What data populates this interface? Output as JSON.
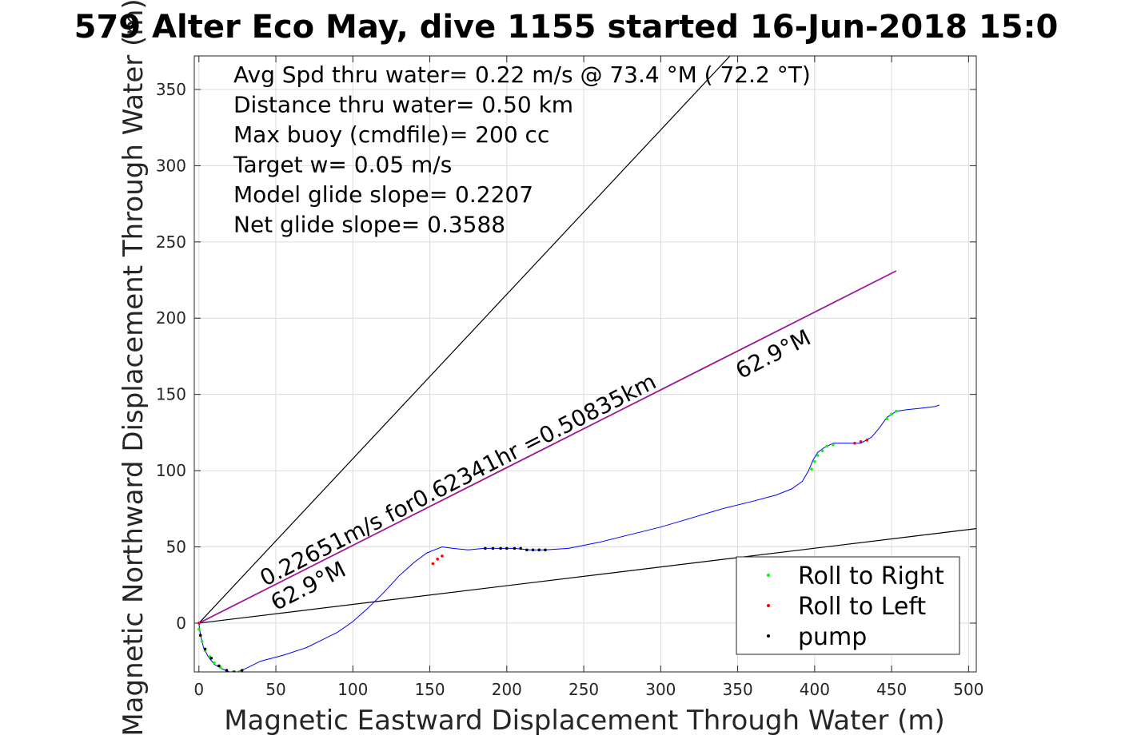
{
  "chart_data": {
    "type": "line",
    "title": "579 Alter Eco May, dive 1155 started 16-Jun-2018 15:0",
    "xlabel": "Magnetic Eastward Displacement Through Water (m)",
    "ylabel": "Magnetic Northward Displacement Through Water (m)",
    "xlim": [
      -3,
      505
    ],
    "ylim": [
      -32,
      372
    ],
    "xticks": [
      0,
      50,
      100,
      150,
      200,
      250,
      300,
      350,
      400,
      450,
      500
    ],
    "yticks": [
      0,
      50,
      100,
      150,
      200,
      250,
      300,
      350
    ],
    "grid": true,
    "legend_position": "bottom-right",
    "colors": {
      "track": "#0000ff",
      "roll_right": "#00ff00",
      "roll_left": "#ff0000",
      "pump": "#000000",
      "reference_lines": "#000000",
      "model_line": "#ff00ff"
    },
    "legend": [
      {
        "label": "Roll to Right",
        "color": "#00ff00"
      },
      {
        "label": "Roll to Left",
        "color": "#ff0000"
      },
      {
        "label": "pump",
        "color": "#000000"
      }
    ],
    "info_lines": [
      "Avg Spd thru water=  0.22 m/s @  73.4 °M ( 72.2 °T)",
      "Distance thru water=  0.50 km",
      "Max buoy (cmdfile)= 200 cc",
      "Target w= 0.05 m/s",
      "Model glide slope= 0.2207",
      "Net glide slope= 0.3588"
    ],
    "reference_lines": [
      {
        "x": [
          0,
          345
        ],
        "y": [
          0,
          372
        ]
      },
      {
        "x": [
          0,
          505
        ],
        "y": [
          0,
          62
        ]
      }
    ],
    "model_line": {
      "x": [
        0,
        453
      ],
      "y": [
        0,
        231
      ]
    },
    "line_labels": [
      {
        "text": "0.22651m/s for0.62341hr =0.50835km",
        "x": 43,
        "y": 24,
        "angle_deg": 27
      },
      {
        "text": "62.9°M",
        "x": 50,
        "y": 8,
        "angle_deg": 27
      },
      {
        "text": "62.9°M",
        "x": 352,
        "y": 160,
        "angle_deg": 27
      }
    ],
    "series": [
      {
        "name": "track",
        "x": [
          0,
          1,
          3,
          6,
          10,
          15,
          20,
          25,
          30,
          40,
          55,
          70,
          80,
          90,
          100,
          110,
          120,
          130,
          140,
          148,
          153,
          158,
          165,
          175,
          185,
          195,
          205,
          215,
          225,
          240,
          260,
          280,
          300,
          320,
          340,
          360,
          375,
          385,
          392,
          396,
          399,
          402,
          406,
          412,
          420,
          430,
          437,
          442,
          447,
          453,
          460,
          470,
          478,
          481
        ],
        "y": [
          0,
          -8,
          -16,
          -22,
          -27,
          -30,
          -32,
          -32,
          -30,
          -25,
          -21,
          -16,
          -11,
          -6,
          1,
          10,
          20,
          31,
          40,
          46,
          48,
          50,
          49,
          48,
          49,
          49,
          49,
          48,
          48,
          49,
          53,
          58,
          63,
          69,
          75,
          80,
          84,
          88,
          93,
          100,
          107,
          112,
          115,
          118,
          118,
          118,
          122,
          128,
          135,
          139,
          140,
          141,
          142,
          143
        ]
      },
      {
        "name": "Roll to Right",
        "x": [
          0,
          2,
          4,
          7,
          10,
          14,
          18,
          22,
          26,
          398,
          400,
          402,
          405,
          408,
          412,
          447,
          450,
          453
        ],
        "y": [
          -4,
          -12,
          -18,
          -22,
          -26,
          -29,
          -31,
          -32,
          -32,
          101,
          106,
          110,
          113,
          116,
          117,
          134,
          137,
          139
        ]
      },
      {
        "name": "Roll to Left",
        "x": [
          0,
          152,
          155,
          158,
          426,
          430,
          434
        ],
        "y": [
          0,
          39,
          42,
          44,
          118,
          119,
          120
        ]
      },
      {
        "name": "pump",
        "x": [
          1,
          4,
          8,
          13,
          18,
          23,
          28,
          186,
          191,
          196,
          200,
          205,
          209,
          213,
          217,
          221,
          225
        ],
        "y": [
          -8,
          -17,
          -23,
          -28,
          -31,
          -32,
          -31,
          49,
          49,
          49,
          49,
          49,
          49,
          48,
          48,
          48,
          48
        ]
      }
    ]
  }
}
